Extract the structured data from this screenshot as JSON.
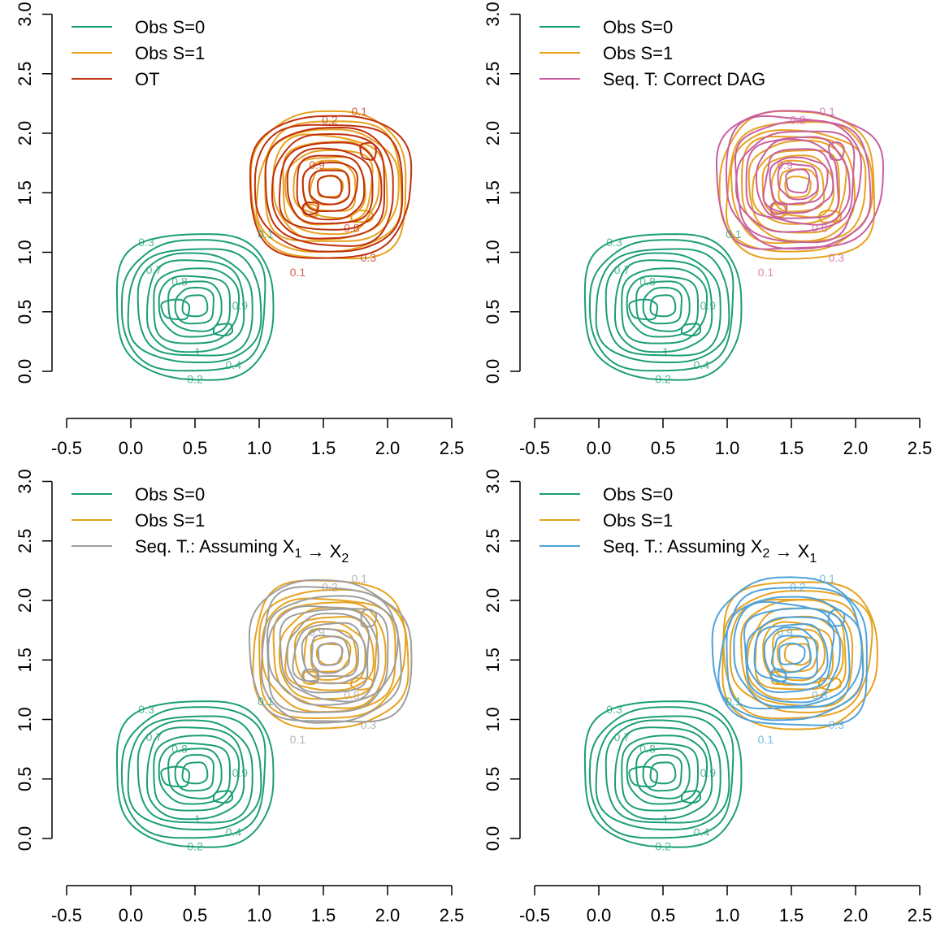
{
  "colors": {
    "obs_s0": "#1b9e77",
    "obs_s1": "#e6a21f",
    "ot": "#c0300f",
    "seq_correct": "#c95fa0",
    "seq_x1x2": "#9e9e9e",
    "seq_x2x1": "#4ea3dc"
  },
  "chart_data": [
    {
      "type": "contour",
      "panel": "top-left",
      "xlim": [
        -0.5,
        2.5
      ],
      "ylim": [
        0.0,
        3.0
      ],
      "x_ticks": [
        "-0.5",
        "0.0",
        "0.5",
        "1.0",
        "1.5",
        "2.0",
        "2.5"
      ],
      "y_ticks": [
        "0.0",
        "0.5",
        "1.0",
        "1.5",
        "2.0",
        "2.5",
        "3.0"
      ],
      "legend": {
        "position": "top-left",
        "entries": [
          {
            "label": "Obs S=0",
            "color": "#1b9e77"
          },
          {
            "label": "Obs S=1",
            "color": "#e6a21f"
          },
          {
            "label": "OT",
            "color": "#c0300f"
          }
        ]
      },
      "series": [
        {
          "name": "Obs S=0",
          "center": [
            0.5,
            0.55
          ]
        },
        {
          "name": "Obs S=1",
          "center": [
            1.55,
            1.55
          ]
        },
        {
          "name": "OT",
          "center": [
            1.55,
            1.55
          ]
        }
      ],
      "contour_levels": [
        "0.1",
        "0.2",
        "0.3",
        "0.4",
        "0.5",
        "0.6",
        "0.7",
        "0.8",
        "0.9",
        "1"
      ]
    },
    {
      "type": "contour",
      "panel": "top-right",
      "xlim": [
        -0.5,
        2.5
      ],
      "ylim": [
        0.0,
        3.0
      ],
      "x_ticks": [
        "-0.5",
        "0.0",
        "0.5",
        "1.0",
        "1.5",
        "2.0",
        "2.5"
      ],
      "y_ticks": [
        "0.0",
        "0.5",
        "1.0",
        "1.5",
        "2.0",
        "2.5",
        "3.0"
      ],
      "legend": {
        "position": "top-left",
        "entries": [
          {
            "label": "Obs S=0",
            "color": "#1b9e77"
          },
          {
            "label": "Obs S=1",
            "color": "#e6a21f"
          },
          {
            "label": "Seq. T: Correct DAG",
            "color": "#c95fa0"
          }
        ]
      },
      "series": [
        {
          "name": "Obs S=0",
          "center": [
            0.5,
            0.55
          ]
        },
        {
          "name": "Obs S=1",
          "center": [
            1.55,
            1.55
          ]
        },
        {
          "name": "Seq. T: Correct DAG",
          "center": [
            1.55,
            1.6
          ]
        }
      ],
      "contour_levels": [
        "0.1",
        "0.2",
        "0.3",
        "0.4",
        "0.5",
        "0.6",
        "0.7",
        "0.8",
        "0.9",
        "1"
      ]
    },
    {
      "type": "contour",
      "panel": "bottom-left",
      "xlim": [
        -0.5,
        2.5
      ],
      "ylim": [
        0.0,
        3.0
      ],
      "x_ticks": [
        "-0.5",
        "0.0",
        "0.5",
        "1.0",
        "1.5",
        "2.0",
        "2.5"
      ],
      "y_ticks": [
        "0.0",
        "0.5",
        "1.0",
        "1.5",
        "2.0",
        "2.5",
        "3.0"
      ],
      "legend": {
        "position": "top-left",
        "entries": [
          {
            "label": "Obs S=0",
            "color": "#1b9e77"
          },
          {
            "label": "Obs S=1",
            "color": "#e6a21f"
          },
          {
            "label": "Seq. T.: Assuming X",
            "sub1": "1",
            "arrow": "→",
            "label2": "X",
            "sub2": "2",
            "color": "#9e9e9e"
          }
        ]
      },
      "series": [
        {
          "name": "Obs S=0",
          "center": [
            0.5,
            0.55
          ]
        },
        {
          "name": "Obs S=1",
          "center": [
            1.55,
            1.55
          ]
        },
        {
          "name": "Seq. T.: Assuming X1 → X2",
          "center": [
            1.55,
            1.55
          ]
        }
      ],
      "contour_levels": [
        "0.1",
        "0.2",
        "0.3",
        "0.4",
        "0.5",
        "0.6",
        "0.7",
        "0.8",
        "0.9",
        "1"
      ]
    },
    {
      "type": "contour",
      "panel": "bottom-right",
      "xlim": [
        -0.5,
        2.5
      ],
      "ylim": [
        0.0,
        3.0
      ],
      "x_ticks": [
        "-0.5",
        "0.0",
        "0.5",
        "1.0",
        "1.5",
        "2.0",
        "2.5"
      ],
      "y_ticks": [
        "0.0",
        "0.5",
        "1.0",
        "1.5",
        "2.0",
        "2.5",
        "3.0"
      ],
      "legend": {
        "position": "top-left",
        "entries": [
          {
            "label": "Obs S=0",
            "color": "#1b9e77"
          },
          {
            "label": "Obs S=1",
            "color": "#e6a21f"
          },
          {
            "label": "Seq. T.: Assuming X",
            "sub1": "2",
            "arrow": "→",
            "label2": "X",
            "sub2": "1",
            "color": "#4ea3dc"
          }
        ]
      },
      "series": [
        {
          "name": "Obs S=0",
          "center": [
            0.5,
            0.55
          ]
        },
        {
          "name": "Obs S=1",
          "center": [
            1.55,
            1.55
          ]
        },
        {
          "name": "Seq. T.: Assuming X2 → X1",
          "center": [
            1.5,
            1.55
          ]
        }
      ],
      "contour_levels": [
        "0.1",
        "0.2",
        "0.3",
        "0.4",
        "0.5",
        "0.6",
        "0.7",
        "0.8",
        "0.9",
        "1"
      ]
    }
  ]
}
